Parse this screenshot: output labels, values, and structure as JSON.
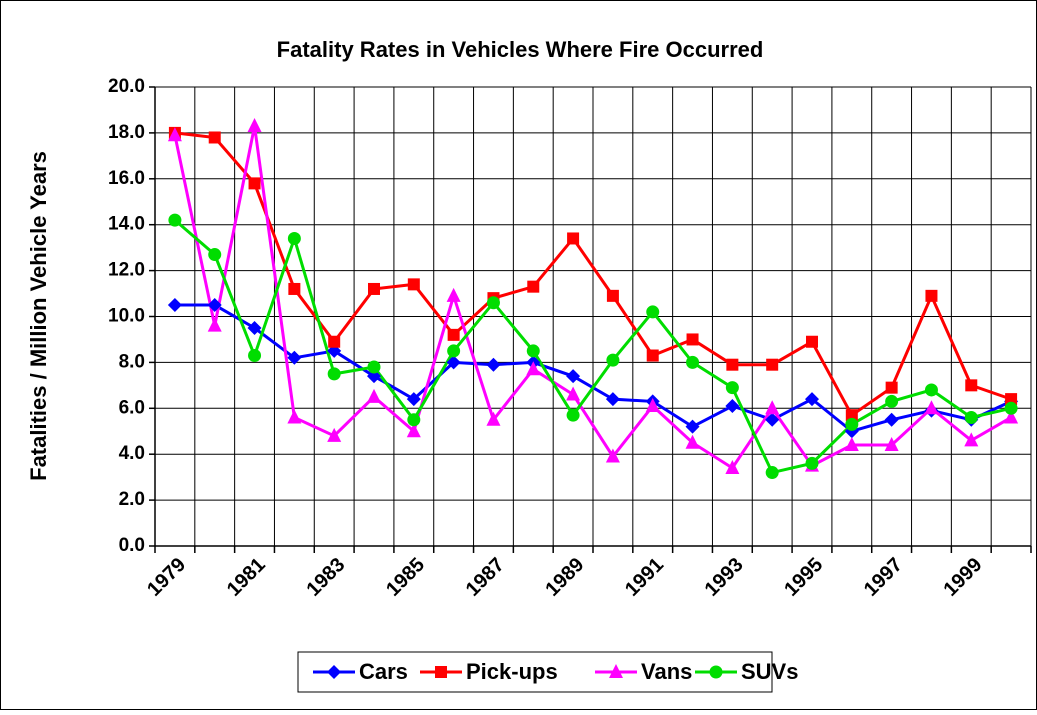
{
  "chart_data": {
    "type": "line",
    "title": "Fatality Rates in Vehicles Where Fire Occurred",
    "y_label": "Fatalities / Million Vehicle Years",
    "categories": [
      1979,
      null,
      1981,
      null,
      1983,
      null,
      1985,
      null,
      1987,
      null,
      1989,
      null,
      1991,
      null,
      1993,
      null,
      1995,
      null,
      1997,
      null,
      1999,
      null
    ],
    "ylim": [
      0,
      20
    ],
    "yticks": [
      {
        "value": 0,
        "label": "0.0"
      },
      {
        "value": 2,
        "label": "2.0"
      },
      {
        "value": 4,
        "label": "4.0"
      },
      {
        "value": 6,
        "label": "6.0"
      },
      {
        "value": 8,
        "label": "8.0"
      },
      {
        "value": 10,
        "label": "10.0"
      },
      {
        "value": 12,
        "label": "12.0"
      },
      {
        "value": 14,
        "label": "14.0"
      },
      {
        "value": 16,
        "label": "16.0"
      },
      {
        "value": 18,
        "label": "18.0"
      },
      {
        "value": 20,
        "label": "20.0"
      }
    ],
    "grid": true,
    "legend": "bottom",
    "series": [
      {
        "name": "Cars",
        "color": "#0000ff",
        "marker": "diamond",
        "values": [
          10.5,
          10.5,
          9.5,
          8.2,
          8.5,
          7.4,
          6.4,
          8.0,
          7.9,
          8.0,
          7.4,
          6.4,
          6.3,
          5.2,
          6.1,
          5.5,
          6.4,
          5.0,
          5.5,
          5.9,
          5.5,
          6.3
        ]
      },
      {
        "name": "Pick-ups",
        "color": "#ff0000",
        "marker": "square",
        "values": [
          18.0,
          17.8,
          15.8,
          11.2,
          8.9,
          11.2,
          11.4,
          9.2,
          10.8,
          11.3,
          13.4,
          10.9,
          8.3,
          9.0,
          7.9,
          7.9,
          8.9,
          5.7,
          6.9,
          10.9,
          7.0,
          6.4
        ]
      },
      {
        "name": "Vans",
        "color": "#ff00ff",
        "marker": "triangle",
        "values": [
          17.9,
          9.6,
          18.3,
          5.6,
          4.8,
          6.5,
          5.0,
          10.9,
          5.5,
          7.7,
          6.6,
          3.9,
          6.1,
          4.5,
          3.4,
          6.0,
          3.5,
          4.4,
          4.4,
          6.0,
          4.6,
          5.6
        ]
      },
      {
        "name": "SUVs",
        "color": "#00dd00",
        "marker": "circle",
        "values": [
          14.2,
          12.7,
          8.3,
          13.4,
          7.5,
          7.8,
          5.5,
          8.5,
          10.6,
          8.5,
          5.7,
          8.1,
          10.2,
          8.0,
          6.9,
          3.2,
          3.6,
          5.3,
          6.3,
          6.8,
          5.6,
          6.0
        ]
      }
    ]
  }
}
